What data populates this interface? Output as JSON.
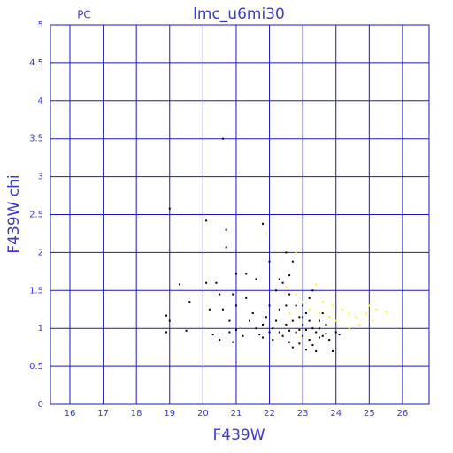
{
  "chart_data": {
    "type": "scatter",
    "title": "lmc_u6mi30",
    "corner_label": "PC",
    "x_label": "F439W",
    "y_label": "F439W chi",
    "xlim": [
      15.415,
      26.8
    ],
    "ylim": [
      0,
      5
    ],
    "xticks": [
      16,
      17,
      18,
      19,
      20,
      21,
      22,
      23,
      24,
      25,
      26
    ],
    "yticks": [
      0,
      0.5,
      1,
      1.5,
      2,
      2.5,
      3,
      3.5,
      4,
      4.5,
      5
    ],
    "grid": true,
    "grid_color": "#1a1ab8",
    "series": [
      {
        "color": "#000000",
        "x": [
          20.6,
          19.0,
          20.1,
          20.7,
          21.8,
          20.7,
          22.5,
          22.0,
          22.7,
          19.3,
          20.1,
          20.4,
          21.0,
          21.3,
          21.6,
          22.3,
          22.6,
          19.5,
          18.9,
          19.0,
          18.9,
          19.6,
          20.5,
          20.9,
          20.2,
          20.6,
          21.0,
          21.3,
          21.5,
          20.3,
          20.5,
          20.9,
          20.8,
          21.0,
          21.2,
          21.6,
          21.8,
          22.0,
          22.2,
          22.3,
          22.5,
          22.6,
          22.8,
          22.9,
          23.0,
          23.1,
          23.2,
          23.3,
          23.4,
          23.5,
          23.6,
          23.7,
          23.8,
          23.9,
          24.0,
          24.1,
          22.1,
          22.4,
          22.6,
          22.7,
          22.8,
          22.9,
          23.0,
          23.1,
          23.2,
          23.3,
          23.4,
          23.5,
          23.6,
          22.2,
          22.4,
          22.1,
          22.5,
          22.7,
          23.0,
          23.3,
          23.1,
          22.9,
          21.9,
          21.4,
          22.0,
          23.5,
          23.7,
          23.2,
          22.3,
          22.6,
          21.7,
          20.8,
          21.8,
          23.0
        ],
        "values": [
          3.5,
          2.58,
          2.42,
          2.3,
          2.38,
          2.07,
          2.0,
          1.88,
          1.88,
          1.58,
          1.6,
          1.6,
          1.72,
          1.72,
          1.65,
          1.65,
          1.7,
          0.97,
          1.17,
          1.1,
          0.95,
          1.35,
          1.45,
          1.45,
          1.25,
          1.25,
          1.3,
          1.4,
          1.2,
          0.92,
          0.85,
          0.82,
          0.95,
          0.98,
          0.9,
          1.0,
          0.88,
          0.95,
          1.1,
          1.25,
          1.3,
          1.45,
          1.3,
          1.15,
          1.05,
          1.2,
          1.4,
          1.0,
          0.95,
          1.1,
          0.9,
          1.05,
          0.85,
          0.7,
          0.95,
          0.92,
          0.85,
          0.9,
          0.82,
          0.75,
          0.95,
          0.8,
          0.9,
          0.72,
          0.85,
          0.78,
          0.7,
          0.88,
          1.2,
          1.5,
          1.6,
          1.0,
          1.05,
          1.1,
          1.3,
          1.5,
          0.98,
          0.98,
          1.15,
          1.1,
          1.3,
          1.0,
          0.93,
          1.1,
          0.95,
          0.97,
          0.92,
          1.1,
          1.05,
          1.15
        ]
      },
      {
        "color": "#ffff00",
        "x": [
          21.9,
          22.8,
          23.4,
          22.5,
          22.8,
          23.0,
          23.2,
          23.5,
          23.8,
          24.0,
          24.2,
          24.4,
          24.6,
          24.7,
          24.9,
          25.0,
          25.2,
          25.5,
          25.1,
          24.4,
          23.9,
          22.6,
          23.6
        ],
        "values": [
          2.25,
          2.0,
          1.58,
          1.55,
          1.45,
          1.35,
          1.25,
          1.2,
          1.15,
          1.1,
          1.25,
          1.2,
          1.15,
          1.05,
          1.2,
          1.3,
          1.25,
          1.22,
          1.1,
          1.0,
          1.3,
          1.2,
          1.35
        ]
      }
    ]
  }
}
